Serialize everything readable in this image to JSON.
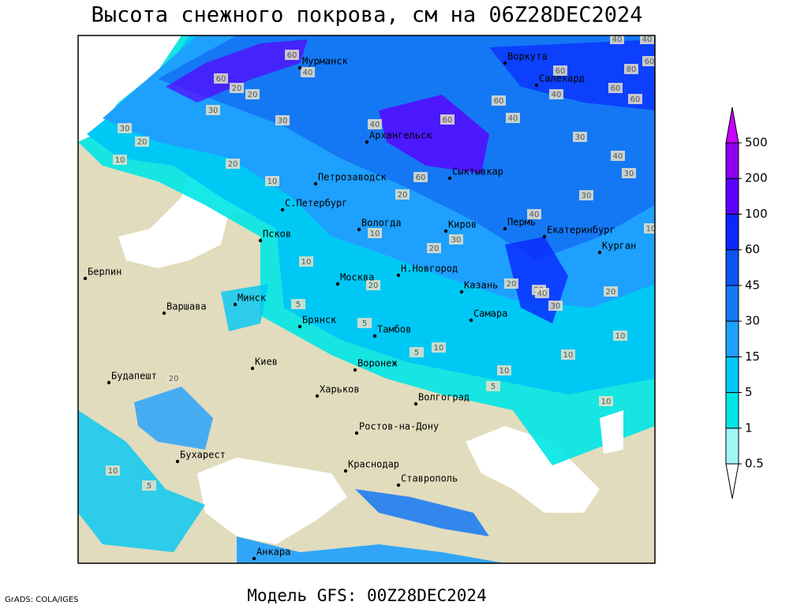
{
  "title": "Высота снежного покрова, см на 06Z28DEC2024",
  "footer": {
    "model": "Модель GFS: 00Z28DEC2024",
    "credit": "GrADS: COLA/IGES"
  },
  "cities": [
    "Мурманск",
    "Воркута",
    "Салехард",
    "Архангельск",
    "Сыктывкар",
    "Петрозаводск",
    "С.Петербург",
    "Вологда",
    "Киров",
    "Пермь",
    "Екатеринбург",
    "Курган",
    "Псков",
    "Берлин",
    "Н.Новгород",
    "Москва",
    "Казань",
    "Минск",
    "Варшава",
    "Самара",
    "Брянск",
    "Тамбов",
    "Киев",
    "Воронеж",
    "Будапешт",
    "Харьков",
    "Волгоград",
    "Ростов-на-Дону",
    "Бухарест",
    "Краснодар",
    "Ставрополь",
    "Анкара"
  ],
  "contour_labels": [
    40,
    60,
    40,
    20,
    60,
    30,
    30,
    20,
    10,
    20,
    30,
    20,
    10,
    40,
    60,
    60,
    40,
    60,
    60,
    40,
    80,
    60,
    40,
    60,
    30,
    40,
    30,
    30,
    60,
    20,
    10,
    10,
    20,
    30,
    20,
    40,
    40,
    30,
    20,
    20,
    10,
    20,
    10,
    5,
    5,
    10,
    5,
    10,
    10,
    5,
    10,
    20,
    10,
    5
  ],
  "colorbar": {
    "levels": [
      0.5,
      1,
      5,
      15,
      30,
      45,
      60,
      100,
      200,
      500
    ],
    "colors": [
      "#ffffff",
      "#a0f5f5",
      "#00e6e6",
      "#00c8f5",
      "#1ea0ff",
      "#1478f5",
      "#0a55f0",
      "#0a28ff",
      "#5a00ff",
      "#8c00f0",
      "#c800ff"
    ]
  }
}
